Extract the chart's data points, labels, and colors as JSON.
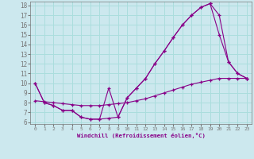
{
  "xlabel": "Windchill (Refroidissement éolien,°C)",
  "bg_color": "#cce8ee",
  "line_color": "#880088",
  "grid_color": "#aadddd",
  "xlim": [
    -0.5,
    23.5
  ],
  "ylim": [
    5.8,
    18.4
  ],
  "xticks": [
    0,
    1,
    2,
    3,
    4,
    5,
    6,
    7,
    8,
    9,
    10,
    11,
    12,
    13,
    14,
    15,
    16,
    17,
    18,
    19,
    20,
    21,
    22,
    23
  ],
  "yticks": [
    6,
    7,
    8,
    9,
    10,
    11,
    12,
    13,
    14,
    15,
    16,
    17,
    18
  ],
  "line1_x": [
    0,
    1,
    2,
    3,
    4,
    5,
    6,
    7,
    8,
    9,
    10,
    11,
    12,
    13,
    14,
    15,
    16,
    17,
    18,
    19,
    20,
    21,
    22,
    23
  ],
  "line1_y": [
    10.0,
    8.0,
    7.7,
    7.2,
    7.2,
    6.5,
    6.3,
    6.3,
    6.4,
    6.5,
    8.5,
    9.5,
    10.5,
    12.0,
    13.3,
    14.7,
    16.0,
    17.0,
    17.8,
    18.2,
    15.0,
    12.2,
    11.0,
    10.5
  ],
  "line2_x": [
    0,
    1,
    2,
    3,
    4,
    5,
    6,
    7,
    8,
    9,
    10,
    11,
    12,
    13,
    14,
    15,
    16,
    17,
    18,
    19,
    20,
    21,
    22,
    23
  ],
  "line2_y": [
    10.0,
    8.0,
    7.7,
    7.2,
    7.2,
    6.5,
    6.3,
    6.3,
    9.5,
    6.5,
    8.5,
    9.5,
    10.5,
    12.0,
    13.3,
    14.7,
    16.0,
    17.0,
    17.8,
    18.2,
    17.0,
    12.2,
    11.0,
    10.5
  ],
  "line3_x": [
    0,
    1,
    2,
    3,
    4,
    5,
    6,
    7,
    8,
    9,
    10,
    11,
    12,
    13,
    14,
    15,
    16,
    17,
    18,
    19,
    20,
    21,
    22,
    23
  ],
  "line3_y": [
    8.2,
    8.1,
    8.0,
    7.9,
    7.8,
    7.7,
    7.7,
    7.7,
    7.8,
    7.9,
    8.0,
    8.2,
    8.4,
    8.7,
    9.0,
    9.3,
    9.6,
    9.9,
    10.1,
    10.3,
    10.5,
    10.5,
    10.5,
    10.5
  ]
}
